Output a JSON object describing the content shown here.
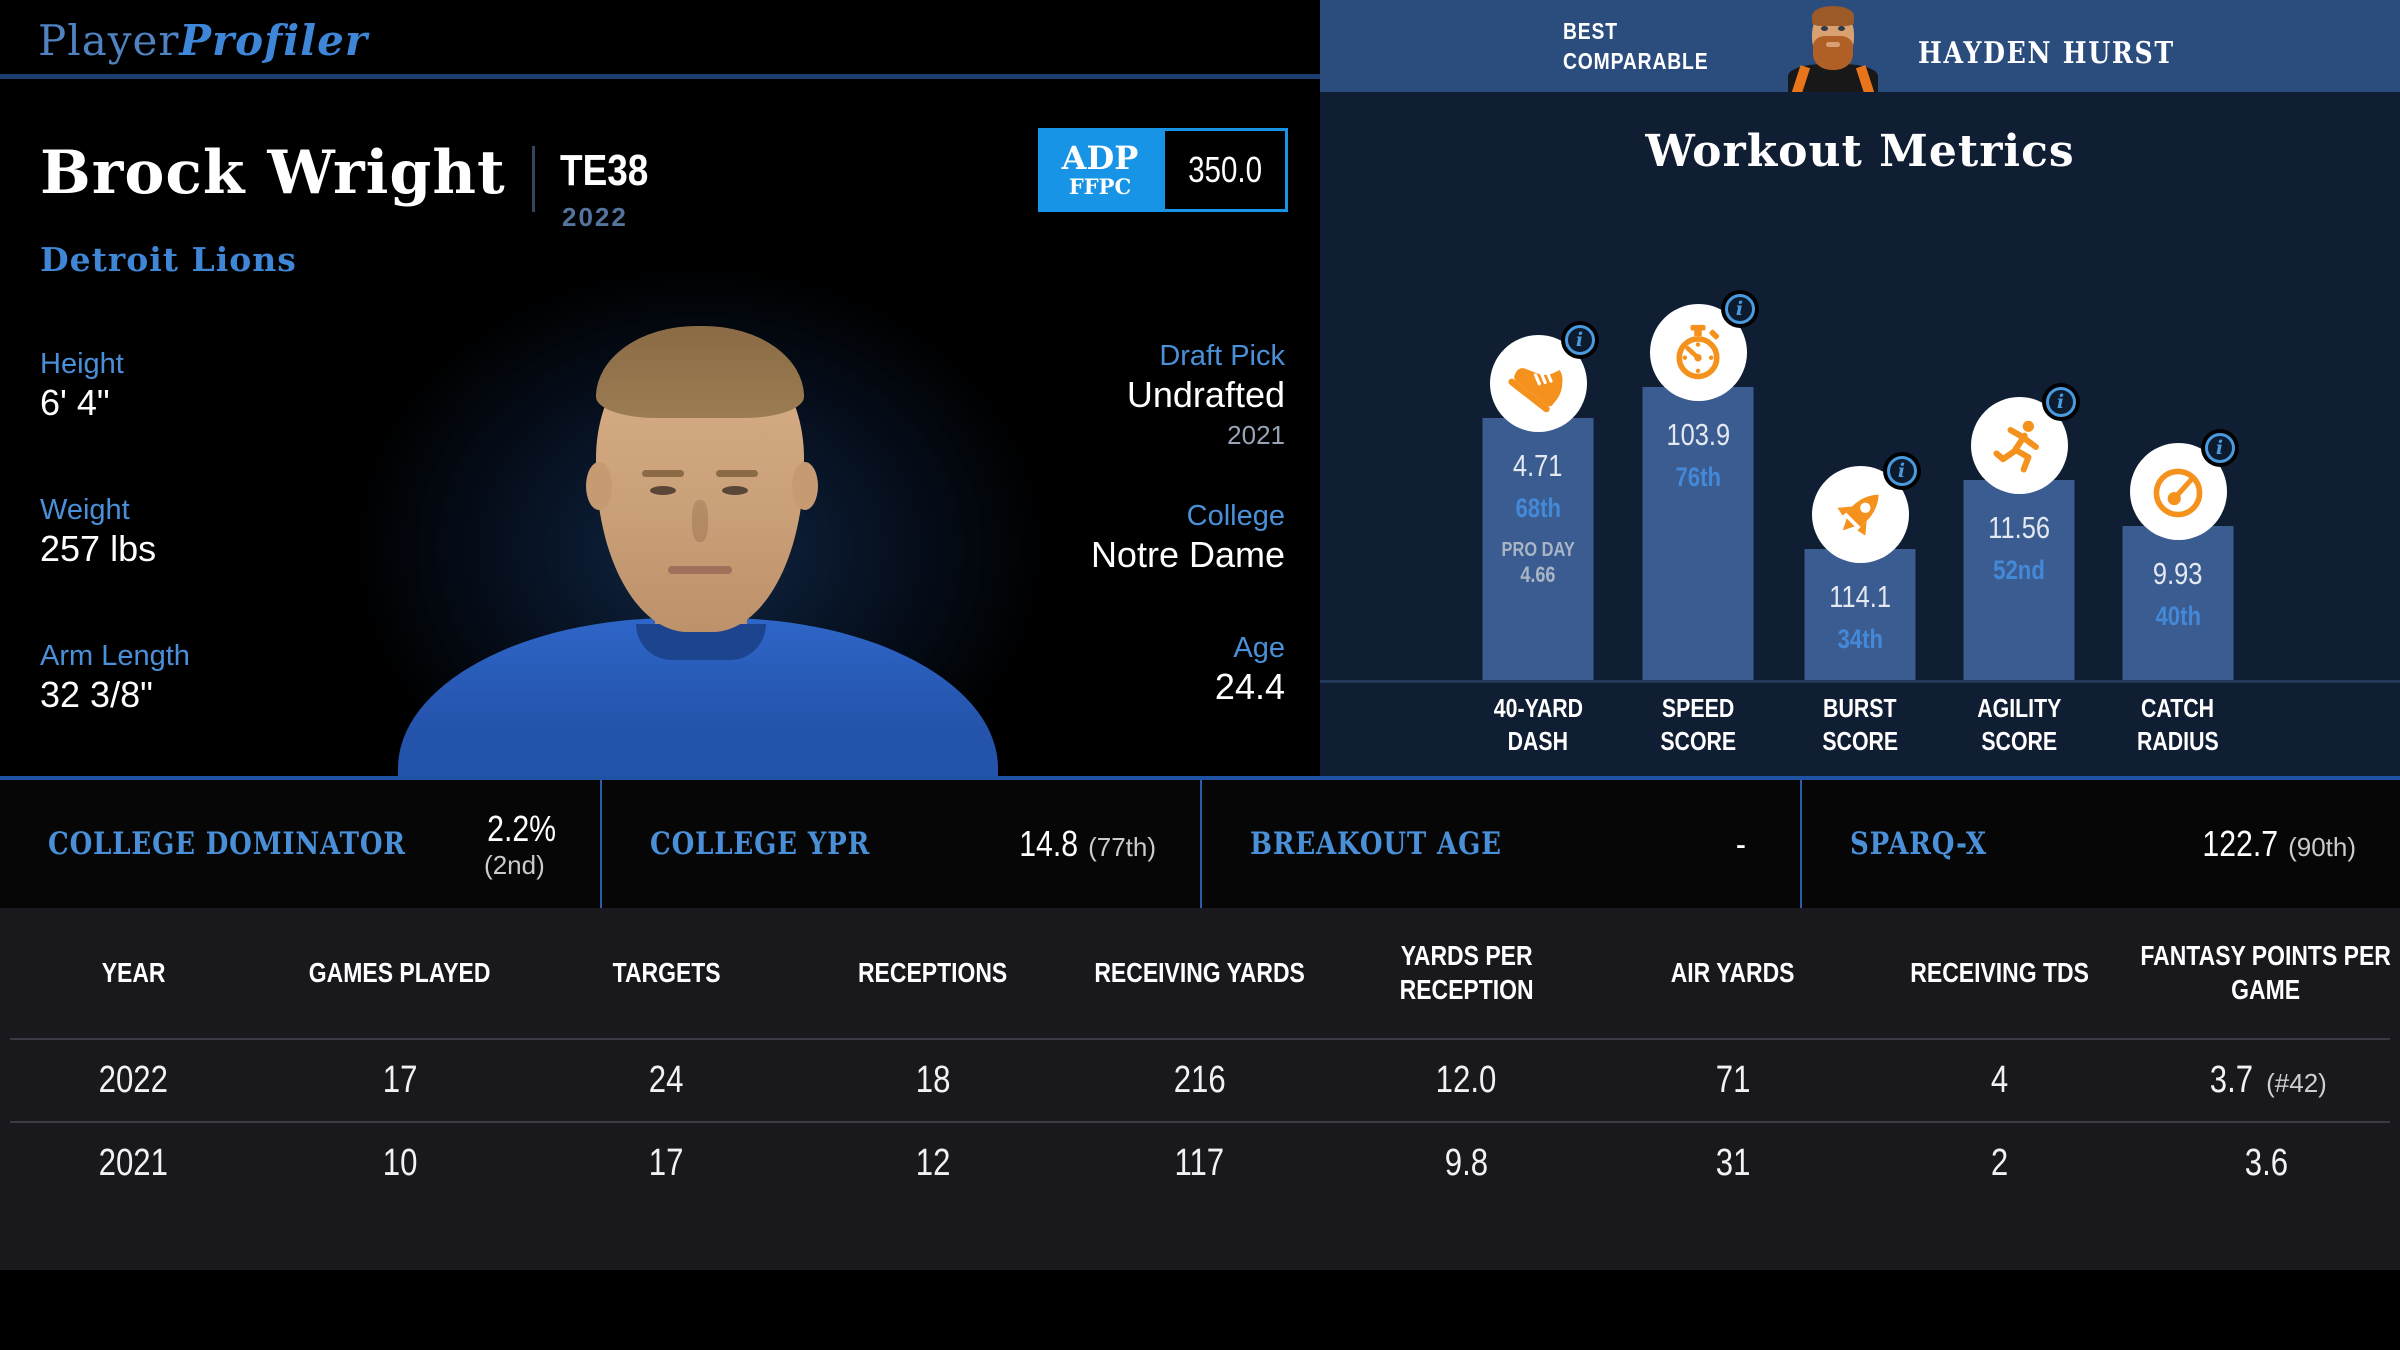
{
  "header": {
    "logo_player": "Player",
    "logo_profiler": "Profiler"
  },
  "player": {
    "name": "Brock Wright",
    "position_rank": "TE38",
    "season": "2022",
    "team": "Detroit Lions",
    "adp": {
      "label": "ADP",
      "format": "FFPC",
      "value": "350.0"
    },
    "attributes_left": [
      {
        "label": "Height",
        "value": "6' 4\""
      },
      {
        "label": "Weight",
        "value": "257 lbs"
      },
      {
        "label": "Arm Length",
        "value": "32 3/8\""
      }
    ],
    "attributes_right": [
      {
        "label": "Draft Pick",
        "value": "Undrafted",
        "sub": "2021"
      },
      {
        "label": "College",
        "value": "Notre Dame"
      },
      {
        "label": "Age",
        "value": "24.4"
      }
    ]
  },
  "comparable": {
    "label_line1": "BEST",
    "label_line2": "COMPARABLE",
    "name": "HAYDEN HURST"
  },
  "workout": {
    "title": "Workout Metrics",
    "metrics": [
      {
        "label_line1": "40-YARD",
        "label_line2": "DASH",
        "value": "4.71",
        "percentile": "68th",
        "percentile_num": 68,
        "extra_label": "PRO DAY",
        "extra_value": "4.66",
        "icon": "shoe-icon"
      },
      {
        "label_line1": "SPEED",
        "label_line2": "SCORE",
        "value": "103.9",
        "percentile": "76th",
        "percentile_num": 76,
        "icon": "stopwatch-icon"
      },
      {
        "label_line1": "BURST",
        "label_line2": "SCORE",
        "value": "114.1",
        "percentile": "34th",
        "percentile_num": 34,
        "icon": "rocket-icon"
      },
      {
        "label_line1": "AGILITY",
        "label_line2": "SCORE",
        "value": "11.56",
        "percentile": "52nd",
        "percentile_num": 52,
        "icon": "runner-icon"
      },
      {
        "label_line1": "CATCH",
        "label_line2": "RADIUS",
        "value": "9.93",
        "percentile": "40th",
        "percentile_num": 40,
        "icon": "gauge-icon"
      }
    ]
  },
  "college_metrics": [
    {
      "label": "COLLEGE DOMINATOR",
      "value": "2.2%",
      "rank": "(2nd)"
    },
    {
      "label": "COLLEGE YPR",
      "value": "14.8",
      "rank": "(77th)"
    },
    {
      "label": "BREAKOUT AGE",
      "value": "-",
      "rank": ""
    },
    {
      "label": "SPARQ-X",
      "value": "122.7",
      "rank": "(90th)"
    }
  ],
  "stats_table": {
    "columns": [
      "YEAR",
      "GAMES PLAYED",
      "TARGETS",
      "RECEPTIONS",
      "RECEIVING YARDS",
      "YARDS PER RECEPTION",
      "AIR YARDS",
      "RECEIVING TDS",
      "FANTASY POINTS PER GAME"
    ],
    "rows": [
      {
        "cells": [
          "2022",
          "17",
          "24",
          "18",
          "216",
          "12.0",
          "71",
          "4",
          "3.7"
        ],
        "rank": "(#42)"
      },
      {
        "cells": [
          "2021",
          "10",
          "17",
          "12",
          "117",
          "9.8",
          "31",
          "2",
          "3.6"
        ],
        "rank": ""
      }
    ]
  },
  "colors": {
    "accent_blue": "#4a90d9",
    "bar_blue": "#3b5c90",
    "panel_navy": "#101e33",
    "comparable_navy": "#2b4d7e",
    "icon_orange": "#f5921e",
    "adp_blue": "#1894e6",
    "table_bg": "#19181c",
    "background": "#000000"
  }
}
